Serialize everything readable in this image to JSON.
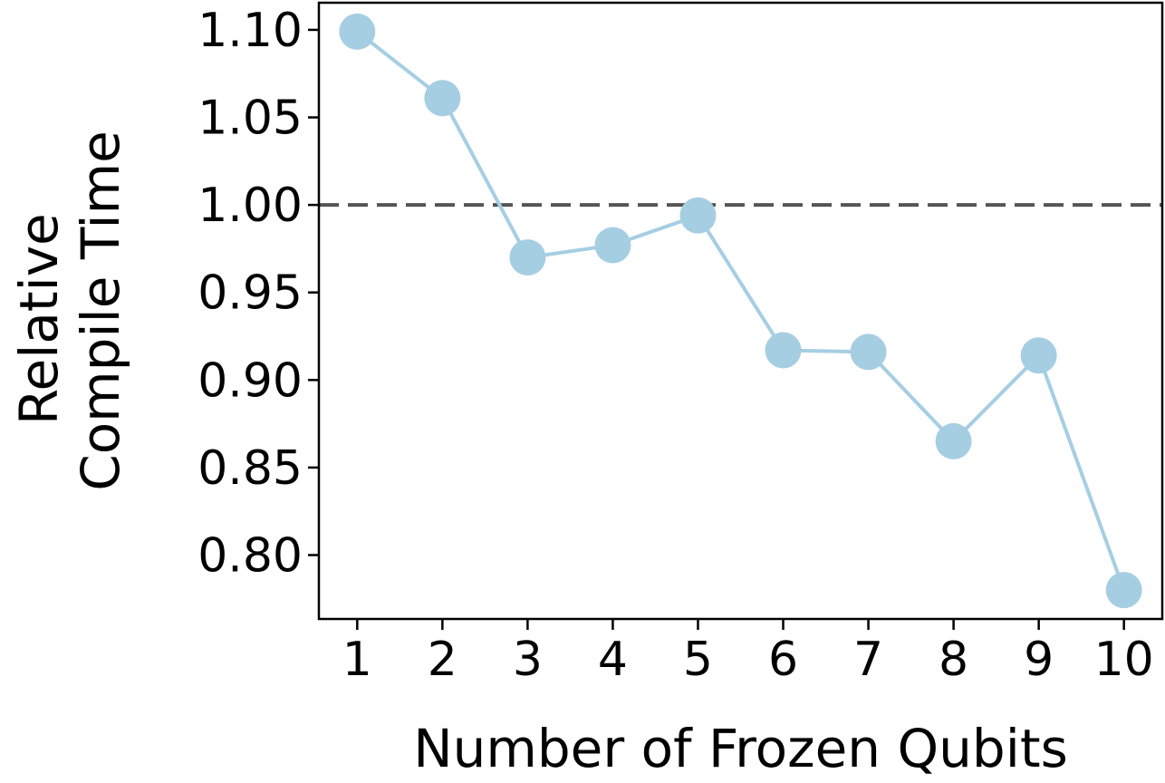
{
  "chart_data": {
    "type": "line",
    "title": "",
    "xlabel": "Number of Frozen Qubits",
    "ylabel_lines": [
      "Relative",
      "Compile Time"
    ],
    "x": [
      1,
      2,
      3,
      4,
      5,
      6,
      7,
      8,
      9,
      10
    ],
    "series": [
      {
        "values": [
          1.099,
          1.061,
          0.97,
          0.977,
          0.994,
          0.917,
          0.916,
          0.865,
          0.914,
          0.78
        ]
      }
    ],
    "x_ticks": [
      "1",
      "2",
      "3",
      "4",
      "5",
      "6",
      "7",
      "8",
      "9",
      "10"
    ],
    "y_ticks": [
      "0.80",
      "0.85",
      "0.90",
      "0.95",
      "1.00",
      "1.05",
      "1.10"
    ],
    "y_tick_values": [
      0.8,
      0.85,
      0.9,
      0.95,
      1.0,
      1.05,
      1.1
    ],
    "xlim": [
      0.55,
      10.45
    ],
    "ylim": [
      0.7635,
      1.1155
    ],
    "reference_line": {
      "y": 1.0,
      "style": "dashed",
      "color": "#555555"
    },
    "series_color": "#a6cee3",
    "grid": false,
    "legend": "none"
  }
}
